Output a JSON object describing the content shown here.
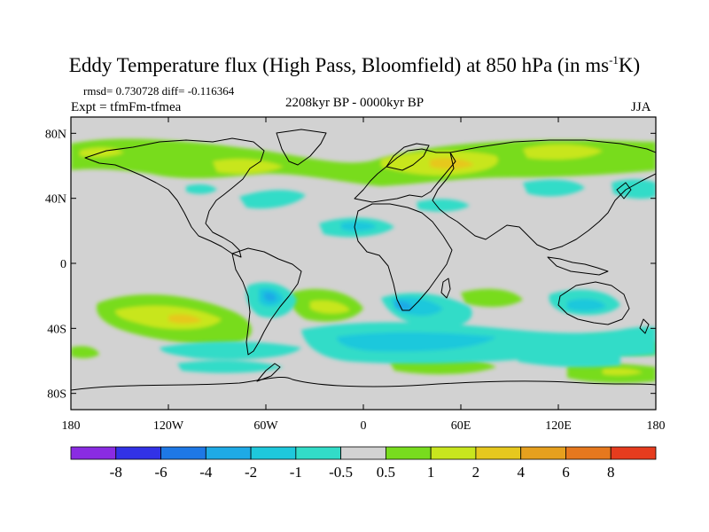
{
  "title": {
    "main": "Eddy Temperature flux (High Pass, Bloomfield) at 850 hPa (in ms",
    "sup": "-1",
    "end": "K)"
  },
  "stats": "rmsd= 0.730728 diff= -0.116364",
  "experiment": "Expt = tfmFm-tfmea",
  "period": "2208kyr BP - 0000kyr BP",
  "season": "JJA",
  "axes": {
    "lat_ticks": [
      "80N",
      "40N",
      "0",
      "40S",
      "80S"
    ],
    "lon_ticks": [
      "180",
      "120W",
      "60W",
      "0",
      "60E",
      "120E",
      "180"
    ]
  },
  "colorbar": {
    "labels": [
      "-8",
      "-6",
      "-4",
      "-2",
      "-1",
      "-0.5",
      "0.5",
      "1",
      "2",
      "4",
      "6",
      "8"
    ],
    "colors": [
      "#8a2be2",
      "#3232e6",
      "#1e78e6",
      "#1eaae6",
      "#1ec8dc",
      "#32dcc8",
      "#d2d2d2",
      "#78dc1e",
      "#c8e61e",
      "#e6c81e",
      "#e6a01e",
      "#e6781e",
      "#e63c1e"
    ]
  },
  "field_colors": {
    "background": "#d2d2d2",
    "pos_weak": "#78dc1e",
    "pos_mid": "#c8e61e",
    "pos_strong": "#e6c81e",
    "neg_weak": "#32dcc8",
    "neg_mid": "#1ec8dc",
    "neg_strong": "#1eaae6"
  }
}
